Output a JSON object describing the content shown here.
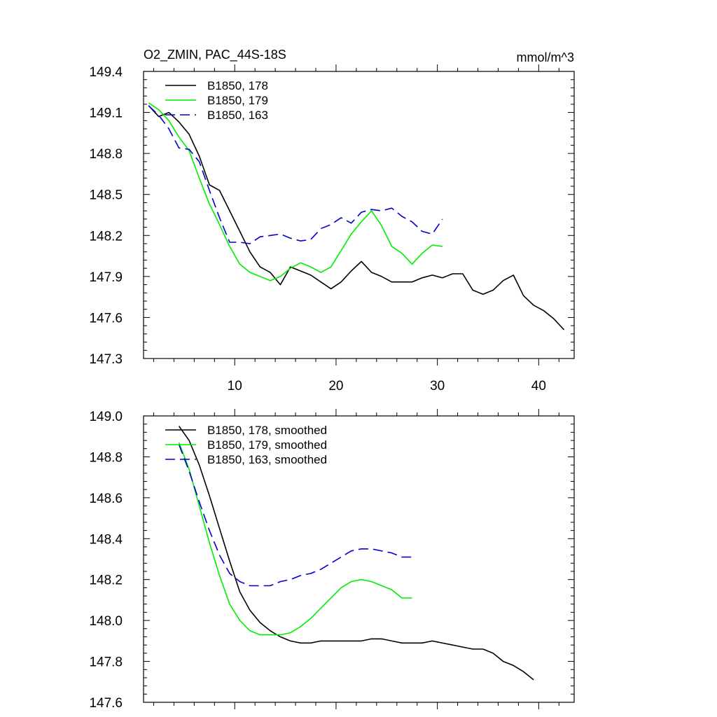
{
  "colors": {
    "series_1": "#000000",
    "series_2": "#00ee00",
    "series_3": "#0000cc"
  },
  "chart_data": [
    {
      "type": "line",
      "title": "O2_ZMIN, PAC_44S-18S",
      "units": "mmol/m^3",
      "xlim": [
        1,
        43.5
      ],
      "ylim": [
        147.3,
        149.4
      ],
      "xticks": [
        10,
        20,
        30,
        40
      ],
      "yticks": [
        147.3,
        147.6,
        147.9,
        148.2,
        148.5,
        148.8,
        149.1,
        149.4
      ],
      "ytick_labels": [
        "147.3",
        "147.6",
        "147.9",
        "148.2",
        "148.5",
        "148.8",
        "149.1",
        "149.4"
      ],
      "xtick_labels": [
        "10",
        "20",
        "30",
        "40"
      ],
      "legend_position": "top-left",
      "series": [
        {
          "name": "B1850, 178",
          "color": "#000000",
          "dash": "solid",
          "x": [
            1.5,
            2.5,
            3.5,
            4.5,
            5.5,
            6.5,
            7.5,
            8.5,
            9.5,
            10.5,
            11.5,
            12.5,
            13.5,
            14.5,
            15.5,
            16.5,
            17.5,
            18.5,
            19.5,
            20.5,
            21.5,
            22.5,
            23.5,
            24.5,
            25.5,
            26.5,
            27.5,
            28.5,
            29.5,
            30.5,
            31.5,
            32.5,
            33.5,
            34.5,
            35.5,
            36.5,
            37.5,
            38.5,
            39.5,
            40.5,
            41.5,
            42.5
          ],
          "y": [
            149.15,
            149.07,
            149.1,
            149.03,
            148.94,
            148.78,
            148.57,
            148.53,
            148.38,
            148.23,
            148.08,
            147.97,
            147.93,
            147.84,
            147.97,
            147.94,
            147.91,
            147.86,
            147.81,
            147.86,
            147.94,
            148.01,
            147.93,
            147.9,
            147.86,
            147.86,
            147.86,
            147.89,
            147.91,
            147.89,
            147.92,
            147.92,
            147.8,
            147.77,
            147.8,
            147.87,
            147.91,
            147.76,
            147.69,
            147.65,
            147.59,
            147.51
          ]
        },
        {
          "name": "B1850, 179",
          "color": "#00ee00",
          "dash": "solid",
          "x": [
            1.5,
            2.5,
            3.5,
            4.5,
            5.5,
            6.5,
            7.5,
            8.5,
            9.5,
            10.5,
            11.5,
            12.5,
            13.5,
            14.5,
            15.5,
            16.5,
            17.5,
            18.5,
            19.5,
            20.5,
            21.5,
            22.5,
            23.5,
            24.5,
            25.5,
            26.5,
            27.5,
            28.5,
            29.5,
            30.5
          ],
          "y": [
            149.17,
            149.12,
            149.04,
            148.92,
            148.82,
            148.62,
            148.43,
            148.28,
            148.12,
            147.99,
            147.93,
            147.9,
            147.87,
            147.9,
            147.96,
            148.0,
            147.97,
            147.93,
            147.97,
            148.09,
            148.21,
            148.3,
            148.38,
            148.27,
            148.12,
            148.07,
            147.99,
            148.07,
            148.13,
            148.12
          ]
        },
        {
          "name": "B1850, 163",
          "color": "#0000cc",
          "dash": "dashed",
          "x": [
            1.5,
            2.5,
            3.5,
            4.5,
            5.5,
            6.5,
            7.5,
            8.5,
            9.5,
            10.5,
            11.5,
            12.5,
            13.5,
            14.5,
            15.5,
            16.5,
            17.5,
            18.5,
            19.5,
            20.5,
            21.5,
            22.5,
            23.5,
            24.5,
            25.5,
            26.5,
            27.5,
            28.5,
            29.5,
            30.5
          ],
          "y": [
            149.15,
            149.08,
            148.98,
            148.84,
            148.83,
            148.74,
            148.53,
            148.33,
            148.15,
            148.15,
            148.14,
            148.19,
            148.2,
            148.21,
            148.18,
            148.16,
            148.17,
            148.25,
            148.28,
            148.33,
            148.29,
            148.37,
            148.39,
            148.38,
            148.4,
            148.34,
            148.3,
            148.23,
            148.21,
            148.32
          ]
        }
      ]
    },
    {
      "type": "line",
      "ylim": [
        147.6,
        149.0
      ],
      "xlim": [
        1,
        43.5
      ],
      "xticks": [
        10,
        20,
        30,
        40
      ],
      "yticks": [
        147.6,
        147.8,
        148.0,
        148.2,
        148.4,
        148.6,
        148.8,
        149.0
      ],
      "ytick_labels": [
        "147.6",
        "147.8",
        "148.0",
        "148.2",
        "148.4",
        "148.6",
        "148.8",
        "149.0"
      ],
      "legend_position": "top-left",
      "series": [
        {
          "name": "B1850, 178, smoothed",
          "color": "#000000",
          "dash": "solid",
          "x": [
            4.5,
            5.5,
            6.5,
            7.5,
            8.5,
            9.5,
            10.5,
            11.5,
            12.5,
            13.5,
            14.5,
            15.5,
            16.5,
            17.5,
            18.5,
            19.5,
            20.5,
            21.5,
            22.5,
            23.5,
            24.5,
            25.5,
            26.5,
            27.5,
            28.5,
            29.5,
            30.5,
            31.5,
            32.5,
            33.5,
            34.5,
            35.5,
            36.5,
            37.5,
            38.5,
            39.5
          ],
          "y": [
            148.95,
            148.88,
            148.76,
            148.61,
            148.45,
            148.29,
            148.14,
            148.05,
            147.99,
            147.95,
            147.92,
            147.9,
            147.89,
            147.89,
            147.9,
            147.9,
            147.9,
            147.9,
            147.9,
            147.91,
            147.91,
            147.9,
            147.89,
            147.89,
            147.89,
            147.9,
            147.89,
            147.88,
            147.87,
            147.86,
            147.86,
            147.84,
            147.8,
            147.78,
            147.75,
            147.71
          ]
        },
        {
          "name": "B1850, 179, smoothed",
          "color": "#00ee00",
          "dash": "solid",
          "x": [
            4.5,
            5.5,
            6.5,
            7.5,
            8.5,
            9.5,
            10.5,
            11.5,
            12.5,
            13.5,
            14.5,
            15.5,
            16.5,
            17.5,
            18.5,
            19.5,
            20.5,
            21.5,
            22.5,
            23.5,
            24.5,
            25.5,
            26.5,
            27.5
          ],
          "y": [
            148.87,
            148.74,
            148.56,
            148.38,
            148.22,
            148.08,
            148.0,
            147.95,
            147.93,
            147.93,
            147.93,
            147.94,
            147.97,
            148.01,
            148.06,
            148.11,
            148.16,
            148.19,
            148.2,
            148.19,
            148.17,
            148.15,
            148.11,
            148.11
          ]
        },
        {
          "name": "B1850, 163, smoothed",
          "color": "#0000cc",
          "dash": "dashed",
          "x": [
            4.5,
            5.5,
            6.5,
            7.5,
            8.5,
            9.5,
            10.5,
            11.5,
            12.5,
            13.5,
            14.5,
            15.5,
            16.5,
            17.5,
            18.5,
            19.5,
            20.5,
            21.5,
            22.5,
            23.5,
            24.5,
            25.5,
            26.5,
            27.5
          ],
          "y": [
            148.86,
            148.73,
            148.58,
            148.44,
            148.32,
            148.23,
            148.19,
            148.17,
            148.17,
            148.17,
            148.19,
            148.2,
            148.22,
            148.23,
            148.25,
            148.28,
            148.31,
            148.34,
            148.35,
            148.35,
            148.34,
            148.33,
            148.31,
            148.31
          ]
        }
      ]
    }
  ]
}
